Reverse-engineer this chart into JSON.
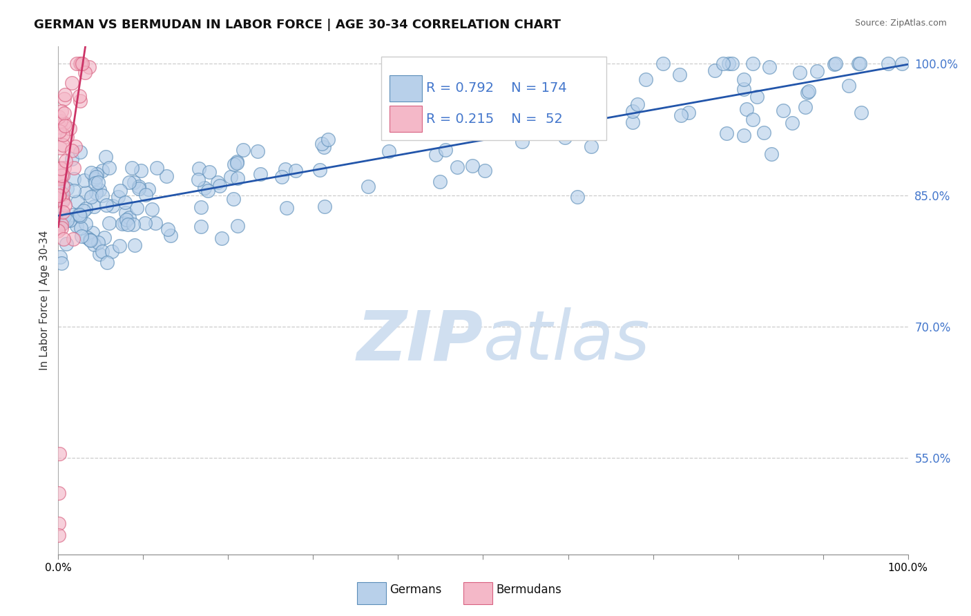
{
  "title": "GERMAN VS BERMUDAN IN LABOR FORCE | AGE 30-34 CORRELATION CHART",
  "source_text": "Source: ZipAtlas.com",
  "ylabel": "In Labor Force | Age 30-34",
  "xlim": [
    0,
    1
  ],
  "ylim": [
    0.44,
    1.02
  ],
  "right_yticks": [
    0.55,
    0.7,
    0.85,
    1.0
  ],
  "right_yticklabels": [
    "55.0%",
    "70.0%",
    "85.0%",
    "100.0%"
  ],
  "blue_R": 0.792,
  "blue_N": 174,
  "pink_R": 0.215,
  "pink_N": 52,
  "blue_fill_color": "#b8d0ea",
  "blue_edge_color": "#5b8db8",
  "pink_fill_color": "#f4b8c8",
  "pink_edge_color": "#d86080",
  "blue_line_color": "#2255aa",
  "pink_line_color": "#cc3366",
  "label_color": "#4477cc",
  "watermark_color": "#d0dff0",
  "background_color": "#ffffff",
  "title_fontsize": 13,
  "axis_fontsize": 11,
  "source_fontsize": 9,
  "legend_fontsize": 13
}
